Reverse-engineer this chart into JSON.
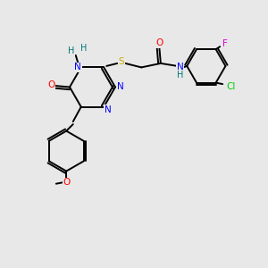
{
  "bg_color": "#e8e8e8",
  "atom_colors": {
    "N": "#0000ff",
    "O": "#ff0000",
    "S": "#ccaa00",
    "Cl": "#00cc00",
    "F": "#dd00dd",
    "C": "#000000",
    "H": "#007777"
  },
  "bond_color": "#000000",
  "lw": 1.4
}
